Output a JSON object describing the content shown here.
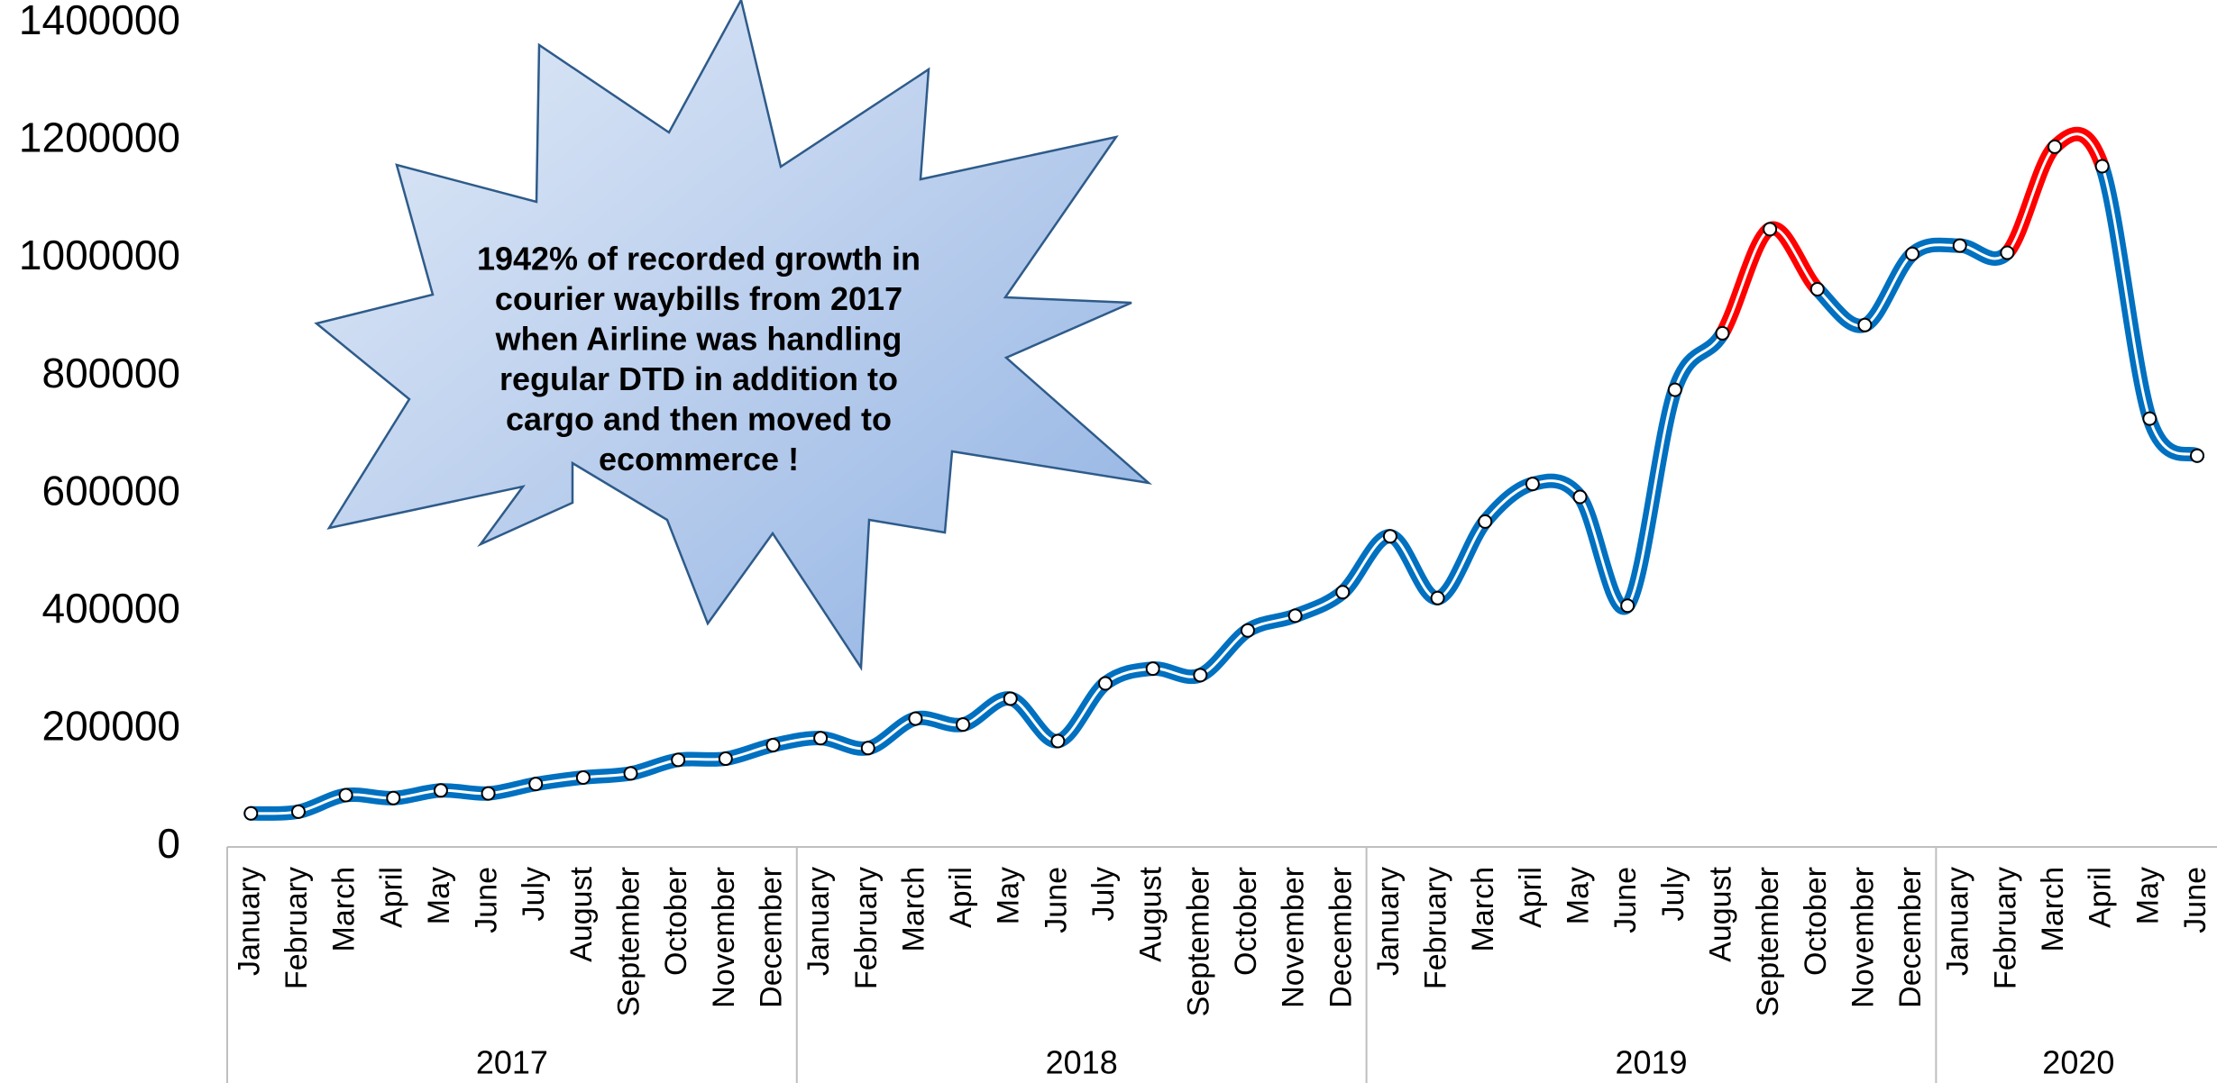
{
  "chart_data": {
    "type": "line",
    "title": "",
    "xlabel": "",
    "ylabel": "",
    "ylim": [
      0,
      1400000
    ],
    "y_ticks": [
      "0",
      "200000",
      "400000",
      "600000",
      "800000",
      "1000000",
      "1200000",
      "1400000"
    ],
    "grid": false,
    "legend": "none",
    "colors": {
      "line": "#0070C0",
      "highlight": "#FF0000",
      "inner": "#FFFFFF",
      "marker_edge": "#000000"
    },
    "groups": [
      {
        "year": "2017",
        "months": [
          "January",
          "February",
          "March",
          "April",
          "May",
          "June",
          "July",
          "August",
          "September",
          "October",
          "November",
          "December"
        ]
      },
      {
        "year": "2018",
        "months": [
          "January",
          "February",
          "March",
          "April",
          "May",
          "June",
          "July",
          "August",
          "September",
          "October",
          "November",
          "December"
        ]
      },
      {
        "year": "2019",
        "months": [
          "January",
          "February",
          "March",
          "April",
          "May",
          "June",
          "July",
          "August",
          "September",
          "October",
          "November",
          "December"
        ]
      },
      {
        "year": "2020",
        "months": [
          "January",
          "February",
          "March",
          "April",
          "May",
          "June"
        ]
      }
    ],
    "series": [
      {
        "values": [
          57000,
          60000,
          88000,
          83000,
          96000,
          91000,
          107000,
          118000,
          125000,
          148000,
          150000,
          173000,
          185000,
          168000,
          218000,
          208000,
          252000,
          180000,
          278000,
          303000,
          292000,
          368000,
          393000,
          433000,
          528000,
          423000,
          553000,
          617000,
          595000,
          410000,
          777000,
          873000,
          1050000,
          948000,
          887000,
          1008000,
          1022000,
          1010000,
          1190000,
          1157000,
          728000,
          665000
        ],
        "highlight_segments": [
          [
            31,
            33
          ],
          [
            37,
            39
          ]
        ]
      }
    ],
    "annotation": "1942% of recorded growth in courier waybills from 2017 when Airline was handling regular DTD in addition to cargo and then moved to ecommerce !",
    "annotation_lines": [
      "1942% of recorded growth in",
      "courier waybills from 2017",
      "when Airline was handling",
      "regular DTD in addition to",
      "cargo and then moved to",
      "ecommerce !"
    ]
  }
}
